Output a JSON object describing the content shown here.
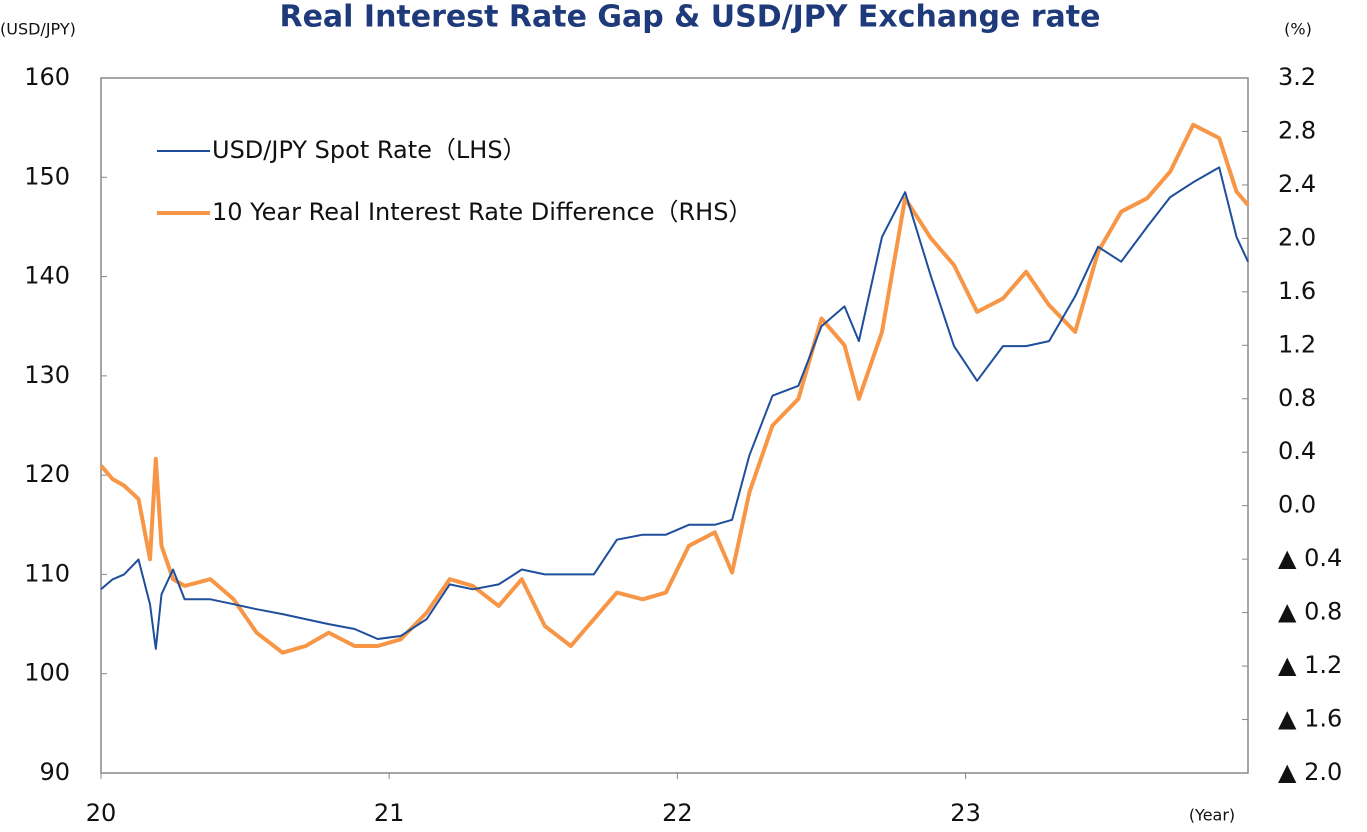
{
  "chart_data": {
    "type": "line",
    "title": "Real Interest Rate Gap & USD/JPY Exchange rate",
    "y_label": "(USD/JPY)",
    "y2_label": "(%)",
    "x_label": "(Year)",
    "x": [
      20.0,
      20.04,
      20.08,
      20.13,
      20.17,
      20.19,
      20.21,
      20.25,
      20.29,
      20.38,
      20.46,
      20.54,
      20.63,
      20.71,
      20.79,
      20.88,
      20.96,
      21.04,
      21.13,
      21.21,
      21.29,
      21.38,
      21.46,
      21.54,
      21.63,
      21.71,
      21.79,
      21.88,
      21.96,
      22.04,
      22.13,
      22.19,
      22.25,
      22.33,
      22.42,
      22.5,
      22.58,
      22.63,
      22.71,
      22.79,
      22.88,
      22.96,
      23.04,
      23.13,
      23.21,
      23.29,
      23.38,
      23.46,
      23.54,
      23.63,
      23.71,
      23.79,
      23.88,
      23.94,
      23.98
    ],
    "series": [
      {
        "name": "USD/JPY Spot Rate（LHS）",
        "color": "#1f4e9c",
        "axis": "y",
        "values": [
          108.5,
          109.5,
          110,
          111.5,
          107,
          102.5,
          108,
          110.5,
          107.5,
          107.5,
          107,
          106.5,
          106,
          105.5,
          105,
          104.5,
          103.5,
          103.8,
          105.5,
          109,
          108.5,
          109,
          110.5,
          110,
          110,
          110,
          113.5,
          114,
          114,
          115,
          115,
          115.5,
          122,
          128,
          129,
          135,
          137,
          133.5,
          144,
          148.5,
          140,
          133,
          129.5,
          133,
          133,
          133.5,
          138,
          143,
          141.5,
          145,
          148,
          149.5,
          151,
          144,
          141.5
        ]
      },
      {
        "name": "10 Year Real Interest Rate Difference（RHS）",
        "color": "#f79646",
        "axis": "y2",
        "values": [
          0.3,
          0.2,
          0.15,
          0.05,
          -0.4,
          0.35,
          -0.3,
          -0.55,
          -0.6,
          -0.55,
          -0.7,
          -0.95,
          -1.1,
          -1.05,
          -0.95,
          -1.05,
          -1.05,
          -1.0,
          -0.8,
          -0.55,
          -0.6,
          -0.75,
          -0.55,
          -0.9,
          -1.05,
          -0.85,
          -0.65,
          -0.7,
          -0.65,
          -0.3,
          -0.2,
          -0.5,
          0.1,
          0.6,
          0.8,
          1.4,
          1.2,
          0.8,
          1.3,
          2.3,
          2.0,
          1.8,
          1.45,
          1.55,
          1.75,
          1.5,
          1.3,
          1.9,
          2.2,
          2.3,
          2.5,
          2.85,
          2.75,
          2.35,
          2.25
        ]
      }
    ],
    "xlim": [
      20,
      23.98
    ],
    "xticks": [
      20,
      21,
      22,
      23
    ],
    "ylim": [
      90,
      160
    ],
    "yticks": [
      90,
      100,
      110,
      120,
      130,
      140,
      150,
      160
    ],
    "y2lim": [
      -2.0,
      3.2
    ],
    "y2ticks": [
      {
        "value": -2.0,
        "label": "▲ 2.0"
      },
      {
        "value": -1.6,
        "label": "▲ 1.6"
      },
      {
        "value": -1.2,
        "label": "▲ 1.2"
      },
      {
        "value": -0.8,
        "label": "▲ 0.8"
      },
      {
        "value": -0.4,
        "label": "▲ 0.4"
      },
      {
        "value": 0,
        "label": "0.0"
      },
      0.4,
      0.8,
      1.2,
      1.6,
      {
        "value": 2,
        "label": "2.0"
      },
      2.4,
      2.8,
      3.2
    ],
    "legend": "top-left",
    "grid": false
  }
}
